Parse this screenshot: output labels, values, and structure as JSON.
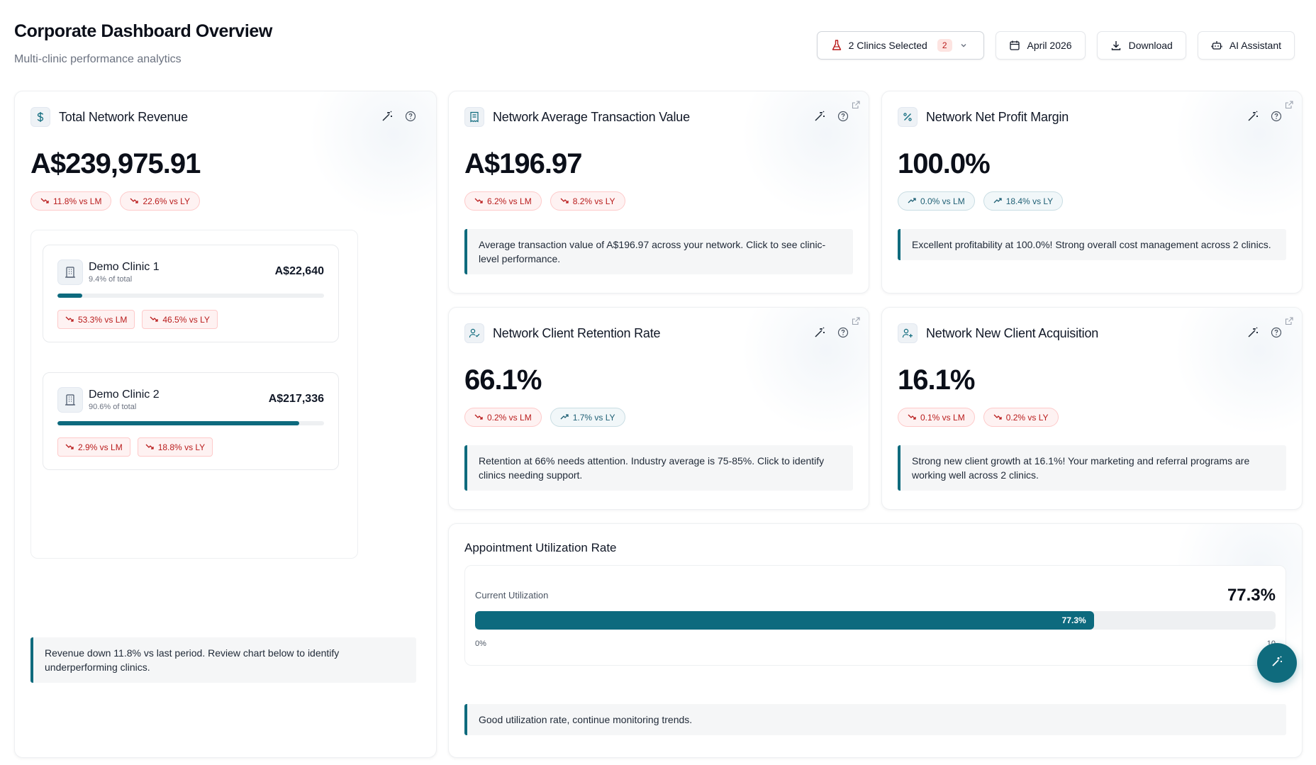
{
  "header": {
    "title": "Corporate Dashboard Overview",
    "subtitle": "Multi-clinic performance analytics",
    "clinics_label": "2 Clinics Selected",
    "clinics_count": "2",
    "date_label": "April 2026",
    "download_label": "Download",
    "assistant_label": "AI Assistant"
  },
  "revenue": {
    "title": "Total Network Revenue",
    "value": "A$239,975.91",
    "vs_lm": "11.8% vs LM",
    "vs_ly": "22.6% vs LY",
    "clinics": [
      {
        "name": "Demo Clinic 1",
        "share": "9.4% of total",
        "value": "A$22,640",
        "share_fraction": 0.094,
        "vs_lm": "53.3% vs LM",
        "vs_ly": "46.5% vs LY"
      },
      {
        "name": "Demo Clinic 2",
        "share": "90.6% of total",
        "value": "A$217,336",
        "share_fraction": 0.906,
        "vs_lm": "2.9% vs LM",
        "vs_ly": "18.8% vs LY"
      }
    ],
    "insight": "Revenue down 11.8% vs last period. Review chart below to identify underperforming clinics."
  },
  "atv": {
    "title": "Network Average Transaction Value",
    "value": "A$196.97",
    "vs_lm": "6.2% vs LM",
    "vs_ly": "8.2% vs LY",
    "insight": "Average transaction value of A$196.97 across your network. Click to see clinic-level performance."
  },
  "profit": {
    "title": "Network Net Profit Margin",
    "value": "100.0%",
    "vs_lm": "0.0% vs LM",
    "vs_ly": "18.4% vs LY",
    "insight": "Excellent profitability at 100.0%! Strong overall cost management across 2 clinics."
  },
  "retention": {
    "title": "Network Client Retention Rate",
    "value": "66.1%",
    "vs_lm": "0.2% vs LM",
    "vs_ly": "1.7% vs LY",
    "insight": "Retention at 66% needs attention. Industry average is 75-85%. Click to identify clinics needing support."
  },
  "acquisition": {
    "title": "Network New Client Acquisition",
    "value": "16.1%",
    "vs_lm": "0.1% vs LM",
    "vs_ly": "0.2% vs LY",
    "insight": "Strong new client growth at 16.1%! Your marketing and referral programs are working well across 2 clinics."
  },
  "utilization": {
    "title": "Appointment Utilization Rate",
    "label": "Current Utilization",
    "value": "77.3%",
    "fill_fraction": 0.773,
    "bar_label": "77.3%",
    "min_label": "0%",
    "max_label": "10",
    "insight": "Good utilization rate, continue monitoring trends."
  },
  "colors": {
    "accent": "#0d6a7e",
    "negative": "#b91c1c",
    "positive": "#1e5f74"
  }
}
